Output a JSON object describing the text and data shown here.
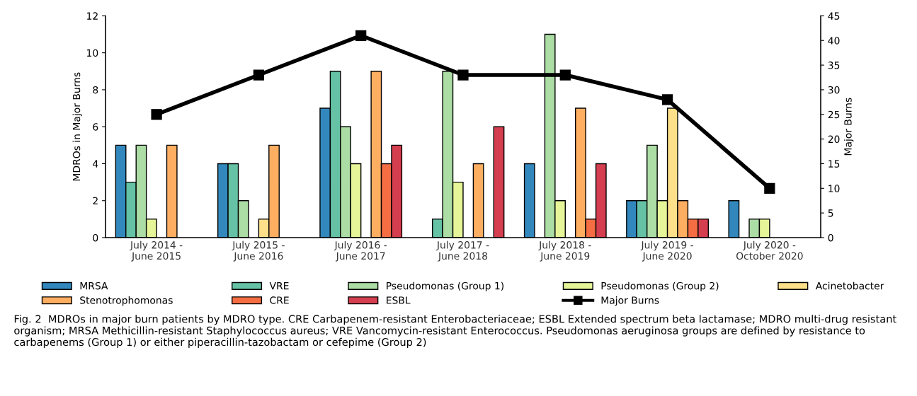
{
  "chart_data": {
    "type": "bar",
    "categories": [
      "July 2014 -\nJune 2015",
      "July 2015 -\nJune 2016",
      "July 2016 -\nJune 2017",
      "July 2017 -\nJune 2018",
      "July 2018 -\nJune 2019",
      "July 2019 -\nJune 2020",
      "July 2020 -\nOctober 2020"
    ],
    "series": [
      {
        "name": "MRSA",
        "color": "#3288bd",
        "values": [
          5,
          4,
          7,
          null,
          4,
          2,
          2
        ]
      },
      {
        "name": "VRE",
        "color": "#66c2a5",
        "values": [
          3,
          4,
          9,
          1,
          null,
          2,
          null
        ]
      },
      {
        "name": "Pseudomonas (Group 1)",
        "color": "#abdda4",
        "values": [
          5,
          2,
          6,
          9,
          11,
          5,
          1
        ]
      },
      {
        "name": "Pseudomonas (Group 2)",
        "color": "#e6f598",
        "values": [
          1,
          null,
          4,
          3,
          2,
          2,
          1
        ]
      },
      {
        "name": "Acinetobacter",
        "color": "#fee08b",
        "values": [
          null,
          1,
          null,
          null,
          null,
          7,
          null
        ]
      },
      {
        "name": "Stenotrophomonas",
        "color": "#fdae61",
        "values": [
          5,
          5,
          9,
          4,
          7,
          2,
          null
        ]
      },
      {
        "name": "CRE",
        "color": "#f46d43",
        "values": [
          null,
          null,
          4,
          null,
          1,
          1,
          null
        ]
      },
      {
        "name": "ESBL",
        "color": "#d53e4f",
        "values": [
          null,
          null,
          5,
          6,
          4,
          1,
          null
        ]
      },
      {
        "name": "Major Burns",
        "type": "line",
        "axis": "y2",
        "color": "#000000",
        "marker": "square",
        "values": [
          25,
          33,
          41,
          33,
          33,
          28,
          10
        ]
      }
    ],
    "ylabel": "MDROs in Major Burns",
    "y2label": "Major Burns",
    "ylim": [
      0,
      12
    ],
    "yticks": [
      0,
      2,
      4,
      6,
      8,
      10,
      12
    ],
    "y2lim": [
      0,
      45
    ],
    "y2ticks": [
      0,
      5,
      10,
      15,
      20,
      25,
      30,
      35,
      40,
      45
    ],
    "legend": "bottom",
    "grid": false,
    "annotations": [
      "Fig. 2  MDROs in major burn patients by MDRO type. CRE Carbapenem-resistant Enterobacteriaceae; ESBL Extended spectrum beta lactamase; MDRO multi-drug resistant organism; MRSA Methicillin-resistant Staphylococcus aureus; VRE Vancomycin-resistant Enterococcus. Pseudomonas aeruginosa groups are defined by resistance to carbapenems (Group 1) or either piperacillin-tazobactam or cefepime (Group 2)"
    ]
  }
}
